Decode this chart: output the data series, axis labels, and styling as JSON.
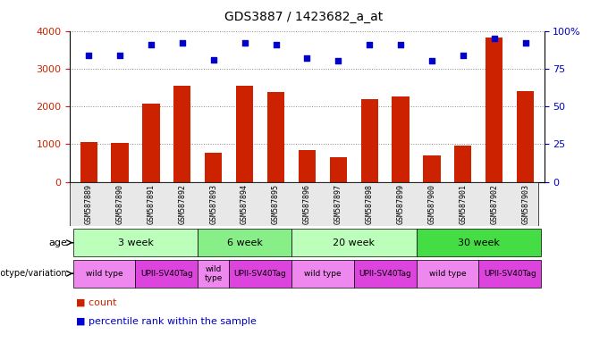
{
  "title": "GDS3887 / 1423682_a_at",
  "samples": [
    "GSM587889",
    "GSM587890",
    "GSM587891",
    "GSM587892",
    "GSM587893",
    "GSM587894",
    "GSM587895",
    "GSM587896",
    "GSM587897",
    "GSM587898",
    "GSM587899",
    "GSM587900",
    "GSM587901",
    "GSM587902",
    "GSM587903"
  ],
  "counts": [
    1050,
    1020,
    2080,
    2540,
    760,
    2550,
    2380,
    830,
    660,
    2200,
    2260,
    690,
    970,
    3820,
    2400
  ],
  "percentiles": [
    84,
    84,
    91,
    92,
    81,
    92,
    91,
    82,
    80,
    91,
    91,
    80,
    84,
    95,
    92
  ],
  "bar_color": "#CC2200",
  "dot_color": "#0000CC",
  "ylim_left": [
    0,
    4000
  ],
  "ylim_right": [
    0,
    100
  ],
  "yticks_left": [
    0,
    1000,
    2000,
    3000,
    4000
  ],
  "yticks_right": [
    0,
    25,
    50,
    75,
    100
  ],
  "ytick_labels_right": [
    "0",
    "25",
    "50",
    "75",
    "100%"
  ],
  "age_groups": [
    {
      "label": "3 week",
      "start": 0,
      "end": 4,
      "color": "#BBFFBB"
    },
    {
      "label": "6 week",
      "start": 4,
      "end": 7,
      "color": "#88EE88"
    },
    {
      "label": "20 week",
      "start": 7,
      "end": 11,
      "color": "#BBFFBB"
    },
    {
      "label": "30 week",
      "start": 11,
      "end": 15,
      "color": "#44DD44"
    }
  ],
  "genotype_groups": [
    {
      "label": "wild type",
      "start": 0,
      "end": 2,
      "color": "#EE88EE"
    },
    {
      "label": "UPII-SV40Tag",
      "start": 2,
      "end": 4,
      "color": "#DD44DD"
    },
    {
      "label": "wild\ntype",
      "start": 4,
      "end": 5,
      "color": "#EE88EE"
    },
    {
      "label": "UPII-SV40Tag",
      "start": 5,
      "end": 7,
      "color": "#DD44DD"
    },
    {
      "label": "wild type",
      "start": 7,
      "end": 9,
      "color": "#EE88EE"
    },
    {
      "label": "UPII-SV40Tag",
      "start": 9,
      "end": 11,
      "color": "#DD44DD"
    },
    {
      "label": "wild type",
      "start": 11,
      "end": 13,
      "color": "#EE88EE"
    },
    {
      "label": "UPII-SV40Tag",
      "start": 13,
      "end": 15,
      "color": "#DD44DD"
    }
  ],
  "bg_color": "#FFFFFF",
  "grid_color": "#888888",
  "tick_label_color_left": "#CC2200",
  "tick_label_color_right": "#0000CC",
  "bar_width": 0.55
}
